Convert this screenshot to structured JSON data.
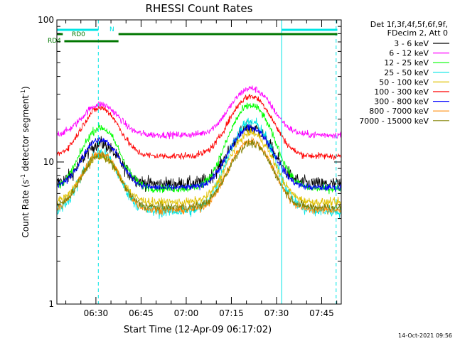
{
  "chart_data": {
    "type": "line",
    "title": "RHESSI Count Rates",
    "xlabel": "Start Time (12-Apr-09 06:17:02)",
    "ylabel_main": "Count Rate (s",
    "ylabel_sup": "-1",
    "ylabel_tail": " detector segment",
    "ylabel_sup2": "-1",
    "ylabel_end": ")",
    "yscale": "log",
    "ylim": [
      1,
      100
    ],
    "xlim_minutes": [
      377.03,
      471.5
    ],
    "y_ticks": [
      {
        "value": 1,
        "label": "1"
      },
      {
        "value": 10,
        "label": "10"
      },
      {
        "value": 100,
        "label": "100"
      }
    ],
    "x_ticks": [
      {
        "minute": 390,
        "label": "06:30"
      },
      {
        "minute": 405,
        "label": "06:45"
      },
      {
        "minute": 420,
        "label": "07:00"
      },
      {
        "minute": 435,
        "label": "07:15"
      },
      {
        "minute": 450,
        "label": "07:30"
      },
      {
        "minute": 465,
        "label": "07:45"
      }
    ],
    "legend_header": [
      "Det 1f,3f,4f,5f,6f,9f,",
      "FDecim 2, Att 0"
    ],
    "series": [
      {
        "name": "3 - 6 keV",
        "color": "#000000",
        "base": 7.0,
        "peak1": 13.5,
        "peak2": 17.5,
        "noise": 0.1
      },
      {
        "name": "6 - 12 keV",
        "color": "#ff00ff",
        "base": 15.5,
        "peak1": 25.5,
        "peak2": 33.0,
        "noise": 0.05
      },
      {
        "name": "12 - 25 keV",
        "color": "#00ff00",
        "base": 6.5,
        "peak1": 17.5,
        "peak2": 25.0,
        "noise": 0.06
      },
      {
        "name": "25 - 50 keV",
        "color": "#00e5e5",
        "base": 4.5,
        "peak1": 11.5,
        "peak2": 19.0,
        "noise": 0.09
      },
      {
        "name": "50 - 100 keV",
        "color": "#e0c000",
        "base": 5.2,
        "peak1": 11.0,
        "peak2": 16.0,
        "noise": 0.06
      },
      {
        "name": "100 - 300 keV",
        "color": "#ff0000",
        "base": 11.0,
        "peak1": 24.0,
        "peak2": 29.0,
        "noise": 0.05
      },
      {
        "name": "300 - 800 keV",
        "color": "#0000ff",
        "base": 6.6,
        "peak1": 14.5,
        "peak2": 17.5,
        "noise": 0.05
      },
      {
        "name": "800 - 7000 keV",
        "color": "#ff8800",
        "base": 4.6,
        "peak1": 11.5,
        "peak2": 14.0,
        "noise": 0.06
      },
      {
        "name": "7000 - 15000 keV",
        "color": "#808000",
        "base": 4.8,
        "peak1": 11.0,
        "peak2": 13.5,
        "noise": 0.06
      }
    ],
    "peak1_minute": 391.5,
    "peak2_minute": 441.5,
    "vlines": [
      {
        "minute": 390.8,
        "style": "dashed",
        "color": "#00e5e5"
      },
      {
        "minute": 451.7,
        "style": "solid",
        "color": "#00e5e5"
      },
      {
        "minute": 469.8,
        "style": "dashed",
        "color": "#00e5e5"
      }
    ],
    "flag_bars": [
      {
        "label": "N",
        "color": "#00e5e5",
        "segments": [
          [
            377.03,
            390.8
          ],
          [
            451.7,
            470.2
          ]
        ],
        "level": 0
      },
      {
        "label": "RD0",
        "color": "#007700",
        "segments": [
          [
            377.03,
            379.0
          ],
          [
            397.5,
            470.2
          ]
        ],
        "level": 1
      },
      {
        "label": "RD4",
        "color": "#007700",
        "segments": [
          [
            379.5,
            397.5
          ]
        ],
        "level": 2
      }
    ]
  },
  "timestamp": "14-Oct-2021 09:56"
}
